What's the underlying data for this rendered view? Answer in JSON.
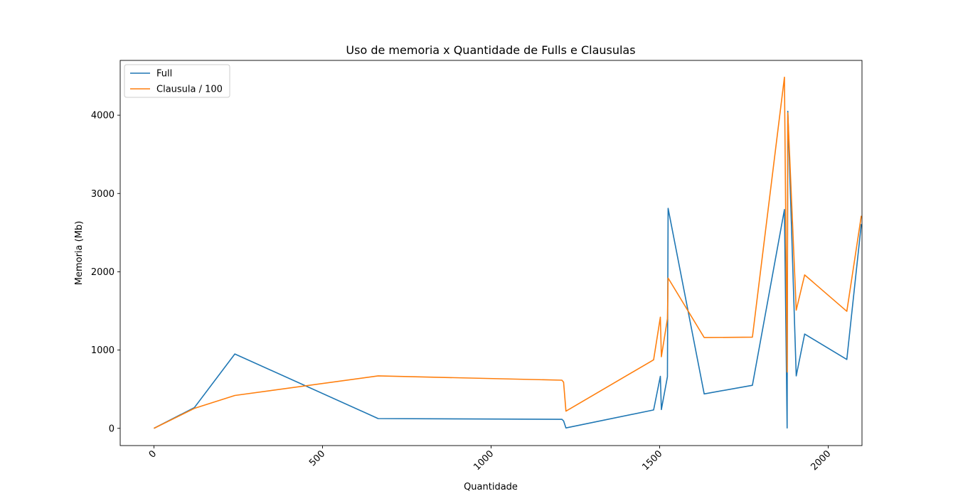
{
  "chart_data": {
    "type": "line",
    "title": "Uso de memoria x Quantidade de Fulls e Clausulas",
    "xlabel": "Quantidade",
    "ylabel": "Memoria (Mb)",
    "xlim": [
      -100,
      2100
    ],
    "ylim": [
      -220,
      4700
    ],
    "xticks": [
      0,
      500,
      1000,
      1500,
      2000
    ],
    "yticks": [
      0,
      1000,
      2000,
      3000,
      4000
    ],
    "xtick_rotation": 45,
    "grid": false,
    "legend_position": "top-left",
    "series": [
      {
        "name": "Full",
        "color": "#1f77b4",
        "points": [
          [
            0,
            0
          ],
          [
            120,
            265
          ],
          [
            240,
            950
          ],
          [
            665,
            125
          ],
          [
            1210,
            115
          ],
          [
            1215,
            95
          ],
          [
            1222,
            5
          ],
          [
            1482,
            235
          ],
          [
            1502,
            665
          ],
          [
            1505,
            240
          ],
          [
            1523,
            660
          ],
          [
            1525,
            2810
          ],
          [
            1632,
            440
          ],
          [
            1775,
            550
          ],
          [
            1870,
            2795
          ],
          [
            1878,
            5
          ],
          [
            1880,
            4050
          ],
          [
            1905,
            670
          ],
          [
            1930,
            1205
          ],
          [
            2055,
            880
          ],
          [
            2098,
            2610
          ]
        ]
      },
      {
        "name": "Clausula / 100",
        "color": "#ff7f0e",
        "points": [
          [
            0,
            0
          ],
          [
            120,
            255
          ],
          [
            240,
            420
          ],
          [
            665,
            670
          ],
          [
            1210,
            615
          ],
          [
            1215,
            590
          ],
          [
            1222,
            220
          ],
          [
            1482,
            875
          ],
          [
            1502,
            1420
          ],
          [
            1505,
            915
          ],
          [
            1523,
            1400
          ],
          [
            1525,
            1920
          ],
          [
            1632,
            1160
          ],
          [
            1775,
            1165
          ],
          [
            1870,
            4485
          ],
          [
            1878,
            720
          ],
          [
            1880,
            4030
          ],
          [
            1905,
            1510
          ],
          [
            1930,
            1960
          ],
          [
            2055,
            1495
          ],
          [
            2098,
            2715
          ]
        ]
      }
    ]
  }
}
